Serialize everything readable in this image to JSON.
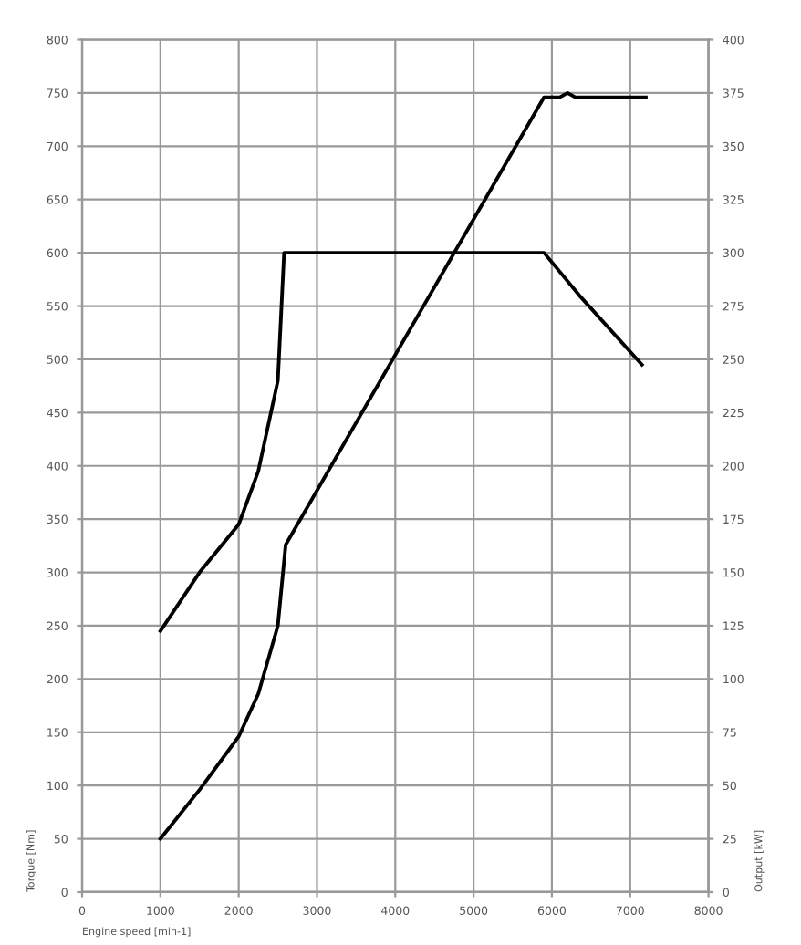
{
  "chart_data": {
    "type": "line",
    "xlabel": "Engine speed [min-1]",
    "ylabel": "Torque [Nm]",
    "y2label": "Output [kW]",
    "xlim": [
      0,
      8000
    ],
    "xticks": [
      0,
      1000,
      2000,
      3000,
      4000,
      5000,
      6000,
      7000,
      8000
    ],
    "ylim": [
      0,
      800
    ],
    "yticks": [
      0,
      50,
      100,
      150,
      200,
      250,
      300,
      350,
      400,
      450,
      500,
      550,
      600,
      650,
      700,
      750,
      800
    ],
    "y2lim": [
      0,
      400
    ],
    "y2ticks": [
      0,
      25,
      50,
      75,
      100,
      125,
      150,
      175,
      200,
      225,
      250,
      275,
      300,
      325,
      350,
      375,
      400
    ],
    "grid": true,
    "marker": "none",
    "line_style": "solid",
    "series": [
      {
        "color": "#000000",
        "x": [
          1000,
          1500,
          2000,
          2250,
          2500,
          2580,
          5900,
          6350,
          7150
        ],
        "values": [
          245,
          300,
          345,
          395,
          480,
          600,
          600,
          560,
          495
        ]
      },
      {
        "color": "#000000",
        "axis": "y2",
        "x": [
          1000,
          1500,
          2000,
          2250,
          2500,
          2600,
          5900,
          6100,
          6200,
          6300,
          7200
        ],
        "values": [
          25,
          48,
          73,
          93,
          125,
          163,
          373,
          373,
          375,
          373,
          373
        ]
      }
    ]
  }
}
